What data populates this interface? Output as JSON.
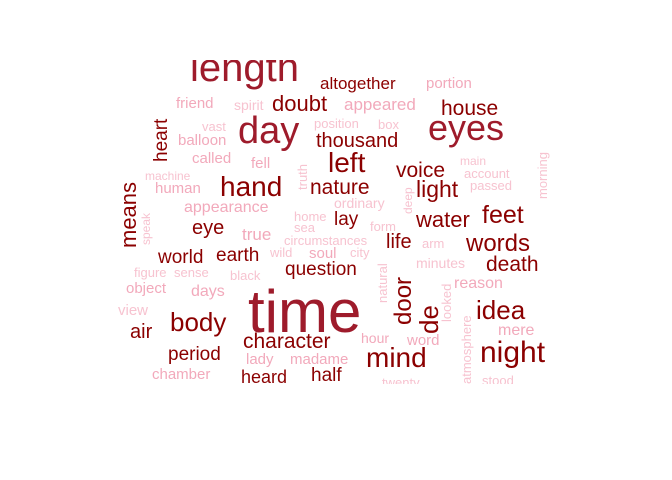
{
  "word_cloud": {
    "colors": {
      "darkest": "#8b0000",
      "dark": "#9e1b2b",
      "medium": "#c97a87",
      "light": "#f2a9bb",
      "lightest": "#f7c3d0"
    },
    "words": [
      {
        "text": "time",
        "tier": "dark",
        "weight": 10
      },
      {
        "text": "length",
        "tier": "dark",
        "weight": 9
      },
      {
        "text": "day",
        "tier": "dark",
        "weight": 8
      },
      {
        "text": "eyes",
        "tier": "dark",
        "weight": 8
      },
      {
        "text": "night",
        "tier": "darkest",
        "weight": 7
      },
      {
        "text": "hand",
        "tier": "darkest",
        "weight": 6
      },
      {
        "text": "left",
        "tier": "darkest",
        "weight": 6
      },
      {
        "text": "mind",
        "tier": "darkest",
        "weight": 6
      },
      {
        "text": "door",
        "tier": "darkest",
        "weight": 5
      },
      {
        "text": "de",
        "tier": "darkest",
        "weight": 5
      },
      {
        "text": "body",
        "tier": "darkest",
        "weight": 5
      },
      {
        "text": "idea",
        "tier": "darkest",
        "weight": 5
      },
      {
        "text": "feet",
        "tier": "darkest",
        "weight": 5
      },
      {
        "text": "words",
        "tier": "darkest",
        "weight": 5
      },
      {
        "text": "light",
        "tier": "darkest",
        "weight": 5
      },
      {
        "text": "means",
        "tier": "darkest",
        "weight": 5
      },
      {
        "text": "doubt",
        "tier": "darkest",
        "weight": 4
      },
      {
        "text": "thousand",
        "tier": "darkest",
        "weight": 4
      },
      {
        "text": "nature",
        "tier": "darkest",
        "weight": 4
      },
      {
        "text": "voice",
        "tier": "darkest",
        "weight": 4
      },
      {
        "text": "house",
        "tier": "darkest",
        "weight": 4
      },
      {
        "text": "water",
        "tier": "darkest",
        "weight": 4
      },
      {
        "text": "character",
        "tier": "darkest",
        "weight": 4
      },
      {
        "text": "heart",
        "tier": "darkest",
        "weight": 4
      },
      {
        "text": "death",
        "tier": "darkest",
        "weight": 4
      },
      {
        "text": "eye",
        "tier": "darkest",
        "weight": 4
      },
      {
        "text": "earth",
        "tier": "darkest",
        "weight": 4
      },
      {
        "text": "world",
        "tier": "darkest",
        "weight": 4
      },
      {
        "text": "life",
        "tier": "darkest",
        "weight": 4
      },
      {
        "text": "air",
        "tier": "darkest",
        "weight": 4
      },
      {
        "text": "period",
        "tier": "darkest",
        "weight": 4
      },
      {
        "text": "question",
        "tier": "darkest",
        "weight": 3
      },
      {
        "text": "lay",
        "tier": "darkest",
        "weight": 3
      },
      {
        "text": "heard",
        "tier": "darkest",
        "weight": 3
      },
      {
        "text": "half",
        "tier": "darkest",
        "weight": 3
      },
      {
        "text": "altogether",
        "tier": "darkest",
        "weight": 3
      },
      {
        "text": "appeared",
        "tier": "light",
        "weight": 3
      },
      {
        "text": "appearance",
        "tier": "light",
        "weight": 3
      },
      {
        "text": "true",
        "tier": "light",
        "weight": 3
      },
      {
        "text": "days",
        "tier": "light",
        "weight": 3
      },
      {
        "text": "soul",
        "tier": "light",
        "weight": 3
      },
      {
        "text": "reason",
        "tier": "light",
        "weight": 3
      },
      {
        "text": "mere",
        "tier": "light",
        "weight": 3
      },
      {
        "text": "word",
        "tier": "light",
        "weight": 3
      },
      {
        "text": "called",
        "tier": "light",
        "weight": 3
      },
      {
        "text": "friend",
        "tier": "light",
        "weight": 3
      },
      {
        "text": "portion",
        "tier": "light",
        "weight": 3
      },
      {
        "text": "balloon",
        "tier": "light",
        "weight": 3
      },
      {
        "text": "human",
        "tier": "light",
        "weight": 3
      },
      {
        "text": "object",
        "tier": "light",
        "weight": 3
      },
      {
        "text": "chamber",
        "tier": "light",
        "weight": 3
      },
      {
        "text": "lady",
        "tier": "light",
        "weight": 3
      },
      {
        "text": "madame",
        "tier": "light",
        "weight": 3
      },
      {
        "text": "hour",
        "tier": "light",
        "weight": 3
      },
      {
        "text": "fell",
        "tier": "light",
        "weight": 3
      },
      {
        "text": "spirit",
        "tier": "lightest",
        "weight": 2
      },
      {
        "text": "vast",
        "tier": "lightest",
        "weight": 2
      },
      {
        "text": "position",
        "tier": "lightest",
        "weight": 2
      },
      {
        "text": "box",
        "tier": "lightest",
        "weight": 2
      },
      {
        "text": "main",
        "tier": "lightest",
        "weight": 2
      },
      {
        "text": "account",
        "tier": "lightest",
        "weight": 2
      },
      {
        "text": "passed",
        "tier": "lightest",
        "weight": 2
      },
      {
        "text": "machine",
        "tier": "lightest",
        "weight": 2
      },
      {
        "text": "truth",
        "tier": "lightest",
        "weight": 2
      },
      {
        "text": "deep",
        "tier": "lightest",
        "weight": 2
      },
      {
        "text": "ordinary",
        "tier": "lightest",
        "weight": 2
      },
      {
        "text": "home",
        "tier": "lightest",
        "weight": 2
      },
      {
        "text": "sea",
        "tier": "lightest",
        "weight": 2
      },
      {
        "text": "form",
        "tier": "lightest",
        "weight": 2
      },
      {
        "text": "circumstances",
        "tier": "lightest",
        "weight": 2
      },
      {
        "text": "arm",
        "tier": "lightest",
        "weight": 2
      },
      {
        "text": "wild",
        "tier": "lightest",
        "weight": 2
      },
      {
        "text": "city",
        "tier": "lightest",
        "weight": 2
      },
      {
        "text": "minutes",
        "tier": "lightest",
        "weight": 2
      },
      {
        "text": "speak",
        "tier": "lightest",
        "weight": 2
      },
      {
        "text": "figure",
        "tier": "lightest",
        "weight": 2
      },
      {
        "text": "sense",
        "tier": "lightest",
        "weight": 2
      },
      {
        "text": "black",
        "tier": "lightest",
        "weight": 2
      },
      {
        "text": "natural",
        "tier": "lightest",
        "weight": 2
      },
      {
        "text": "looked",
        "tier": "lightest",
        "weight": 2
      },
      {
        "text": "view",
        "tier": "lightest",
        "weight": 2
      },
      {
        "text": "atmosphere",
        "tier": "lightest",
        "weight": 2
      },
      {
        "text": "morning",
        "tier": "lightest",
        "weight": 2
      },
      {
        "text": "twenty",
        "tier": "lightest",
        "weight": 2
      },
      {
        "text": "stood",
        "tier": "lightest",
        "weight": 2
      }
    ]
  }
}
